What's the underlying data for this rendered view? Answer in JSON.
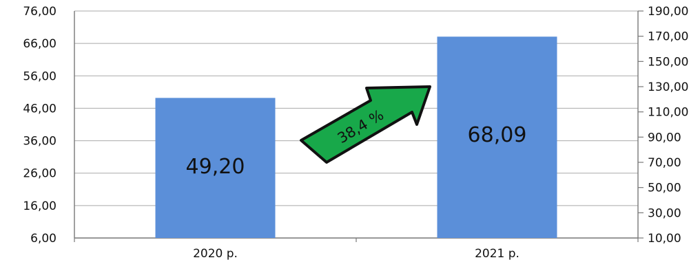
{
  "chart_data": {
    "type": "bar",
    "categories": [
      "2020 р.",
      "2021 р."
    ],
    "values": [
      49.2,
      68.09
    ],
    "data_labels": [
      "49,20",
      "68,09"
    ],
    "ylim": [
      6,
      76
    ],
    "yticks": [
      "76,00",
      "66,00",
      "56,00",
      "46,00",
      "36,00",
      "26,00",
      "16,00",
      "6,00"
    ],
    "y2lim": [
      10,
      190
    ],
    "y2ticks": [
      "190,00",
      "170,00",
      "150,00",
      "130,00",
      "110,00",
      "90,00",
      "70,00",
      "50,00",
      "30,00",
      "10,00"
    ],
    "grid": true,
    "bar_color": "#5B8FD9",
    "annotation": {
      "text": "38,4 %",
      "color": "#18A84A"
    }
  }
}
